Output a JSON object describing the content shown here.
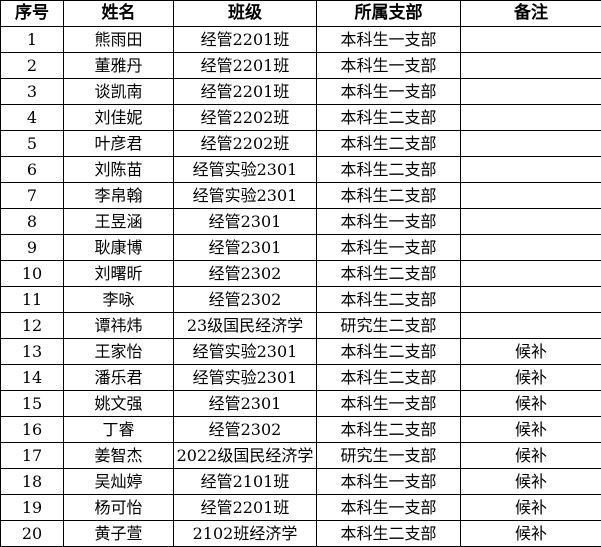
{
  "headers": [
    "序号",
    "姓名",
    "班级",
    "所属支部",
    "备注"
  ],
  "rows": [
    [
      "1",
      "熊雨田",
      "经管2201班",
      "本科生一支部",
      ""
    ],
    [
      "2",
      "董雅丹",
      "经管2201班",
      "本科生一支部",
      ""
    ],
    [
      "3",
      "谈凯南",
      "经管2201班",
      "本科生一支部",
      ""
    ],
    [
      "4",
      "刘佳妮",
      "经管2202班",
      "本科生二支部",
      ""
    ],
    [
      "5",
      "叶彦君",
      "经管2202班",
      "本科生二支部",
      ""
    ],
    [
      "6",
      "刘陈苗",
      "经管实验2301",
      "本科生二支部",
      ""
    ],
    [
      "7",
      "李帛翰",
      "经管实验2301",
      "本科生二支部",
      ""
    ],
    [
      "8",
      "王昱涵",
      "经管2301",
      "本科生一支部",
      ""
    ],
    [
      "9",
      "耿康博",
      "经管2301",
      "本科生一支部",
      ""
    ],
    [
      "10",
      "刘曙昕",
      "经管2302",
      "本科生二支部",
      ""
    ],
    [
      "11",
      "李咏",
      "经管2302",
      "本科生二支部",
      ""
    ],
    [
      "12",
      "谭祎炜",
      "23级国民经济学",
      "研究生二支部",
      ""
    ],
    [
      "13",
      "王家怡",
      "经管实验2301",
      "本科生二支部",
      "候补"
    ],
    [
      "14",
      "潘乐君",
      "经管实验2301",
      "本科生二支部",
      "候补"
    ],
    [
      "15",
      "姚文强",
      "经管2301",
      "本科生一支部",
      "候补"
    ],
    [
      "16",
      "丁睿",
      "经管2302",
      "本科生二支部",
      "候补"
    ],
    [
      "17",
      "姜智杰",
      "2022级国民经济学",
      "研究生一支部",
      "候补"
    ],
    [
      "18",
      "吴灿婷",
      "经管2101班",
      "本科生一支部",
      "候补"
    ],
    [
      "19",
      "杨可怡",
      "经管2201班",
      "本科生一支部",
      "候补"
    ],
    [
      "20",
      "黄子萱",
      "2102班经济学",
      "本科生二支部",
      "候补"
    ]
  ]
}
